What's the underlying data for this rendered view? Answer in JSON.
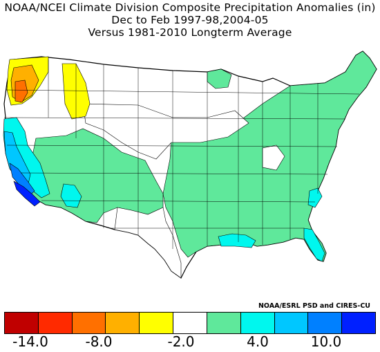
{
  "title": {
    "line1": "NOAA/NCEI Climate Division Composite Precipitation Anomalies (in)",
    "line2": "Dec to Feb  1997-98,2004-05",
    "line3": "Versus 1981-2010 Longterm Average"
  },
  "credit": "NOAA/ESRL PSD and CIRES-CU",
  "colorbar": {
    "colors": [
      "#c00000",
      "#ff2a00",
      "#ff7000",
      "#ffb000",
      "#ffff00",
      "#ffffff",
      "#5fe89b",
      "#00f7ee",
      "#00c7ff",
      "#0080ff",
      "#0020ff"
    ],
    "labels": [
      "-14.0",
      "-8.0",
      "-2.0",
      "4.0",
      "10.0"
    ]
  },
  "map": {
    "region": "Contiguous United States climate divisions",
    "colors": {
      "border": "#000000",
      "white": "#ffffff",
      "light_green": "#5fe89b",
      "cyan": "#00f7ee",
      "light_blue": "#00c7ff",
      "blue": "#0080ff",
      "dark_blue": "#0020ff",
      "yellow": "#ffff00",
      "gold": "#ffb000",
      "orange": "#ff7000"
    }
  }
}
